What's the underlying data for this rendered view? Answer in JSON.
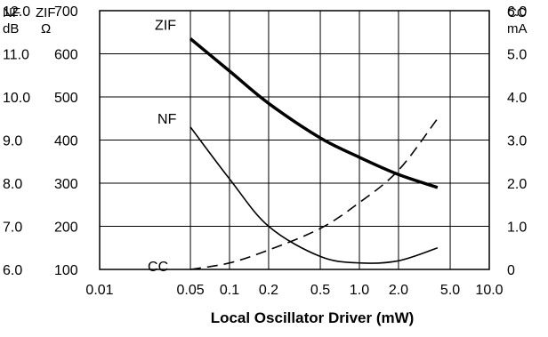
{
  "chart_data": {
    "type": "line",
    "title": "",
    "xlabel": "Local Oscillator Driver (mW)",
    "x_scale": "log",
    "xlim": [
      0.01,
      10.0
    ],
    "x_ticks": [
      "0.01",
      "0.05",
      "0.1",
      "0.2",
      "0.5",
      "1.0",
      "2.0",
      "5.0",
      "10.0"
    ],
    "grid": true,
    "axes": {
      "nf": {
        "header": [
          "NF",
          "dB"
        ],
        "ticks": [
          "6.0",
          "7.0",
          "8.0",
          "9.0",
          "10.0",
          "11.0",
          "12.0"
        ],
        "ylim": [
          6.0,
          12.0
        ]
      },
      "zif": {
        "header": [
          "ZIF",
          "Ω"
        ],
        "ticks": [
          "100",
          "200",
          "300",
          "400",
          "500",
          "600",
          "700"
        ],
        "ylim": [
          100,
          700
        ]
      },
      "cc": {
        "header": [
          "CC",
          "mA"
        ],
        "ticks": [
          "0",
          "1.0",
          "2.0",
          "3.0",
          "4.0",
          "5.0",
          "6.0"
        ],
        "ylim": [
          0,
          6.0
        ]
      }
    },
    "series": [
      {
        "name": "ZIF",
        "axis": "zif",
        "style": "thick",
        "x": [
          0.05,
          0.1,
          0.2,
          0.5,
          1.0,
          2.0,
          4.0
        ],
        "y": [
          635,
          560,
          485,
          405,
          360,
          320,
          290
        ]
      },
      {
        "name": "NF",
        "axis": "nf",
        "style": "thin",
        "x": [
          0.05,
          0.1,
          0.2,
          0.5,
          1.0,
          2.0,
          4.0
        ],
        "y": [
          9.3,
          8.1,
          7.0,
          6.3,
          6.15,
          6.2,
          6.5
        ]
      },
      {
        "name": "CC",
        "axis": "cc",
        "style": "dashed",
        "x": [
          0.05,
          0.1,
          0.2,
          0.5,
          1.0,
          2.0,
          4.0
        ],
        "y": [
          0.0,
          0.15,
          0.45,
          0.95,
          1.55,
          2.3,
          3.5
        ]
      }
    ]
  }
}
